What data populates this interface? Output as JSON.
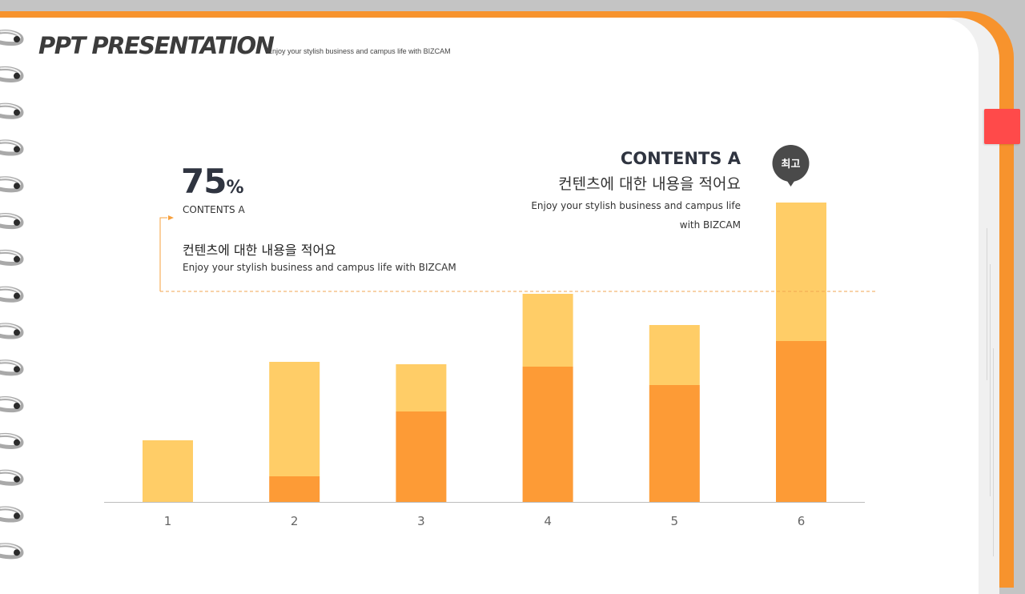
{
  "header": {
    "title": "PPT PRESENTATION",
    "subtitle": "Enjoy your stylish business and campus life with BIZCAM"
  },
  "stat": {
    "value": "75",
    "unit": "%",
    "label": "CONTENTS A",
    "heading": "컨텐츠에 대한 내용을 적어요",
    "sub": "Enjoy your stylish business and campus life with BIZCAM"
  },
  "highlight": {
    "title": "CONTENTS A",
    "heading": "컨텐츠에 대한 내용을 적어요",
    "sub_line1": "Enjoy your stylish business and campus life",
    "sub_line2": "with BIZCAM",
    "callout": "최고"
  },
  "colors": {
    "accent_orange": "#fd9b36",
    "light_orange": "#ffcd67",
    "frame_orange": "#f7932d",
    "bookmark_red": "#ff4a4a",
    "text_dark": "#2f3440",
    "callout_gray": "#4a4a4a"
  },
  "icons": {
    "binder_rings": "spiral-binding-icon",
    "callout": "speech-bubble-icon"
  },
  "chart_data": {
    "type": "bar",
    "stacked": true,
    "categories": [
      "1",
      "2",
      "3",
      "4",
      "5",
      "6"
    ],
    "series": [
      {
        "values": [
          0,
          32,
          113,
          169,
          146,
          201
        ]
      },
      {
        "values": [
          77,
          143,
          59,
          91,
          75,
          173
        ]
      }
    ],
    "title": "",
    "xlabel": "",
    "ylabel": "",
    "ylim": [
      0,
      374
    ],
    "reference_line": 263,
    "highlight_category": "6",
    "grid": false,
    "legend": "none"
  }
}
